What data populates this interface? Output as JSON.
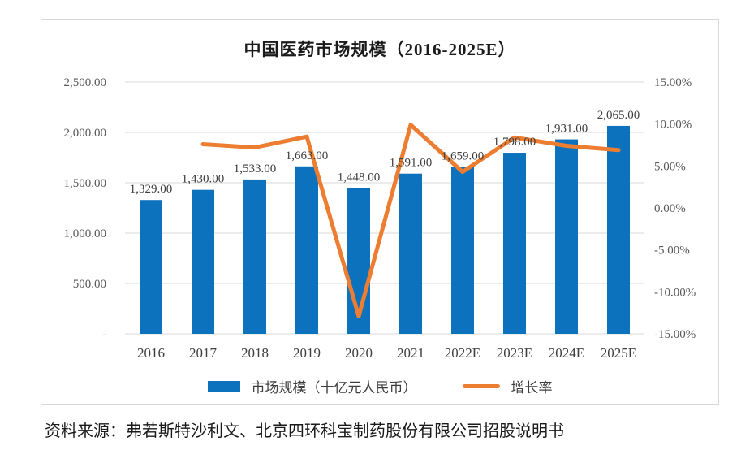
{
  "page": {
    "source_note": "资料来源：弗若斯特沙利文、北京四环科宝制药股份有限公司招股说明书"
  },
  "chart_data": {
    "type": "bar",
    "subtype": "bar-line-combo",
    "title": "中国医药市场规模（2016-2025E）",
    "categories": [
      "2016",
      "2017",
      "2018",
      "2019",
      "2020",
      "2021",
      "2022E",
      "2023E",
      "2024E",
      "2025E"
    ],
    "series": [
      {
        "name": "市场规模（十亿元人民币）",
        "type": "bar",
        "axis": "left",
        "values": [
          1329,
          1430,
          1533,
          1663,
          1448,
          1591,
          1659,
          1798,
          1931,
          2065
        ],
        "data_labels": [
          "1,329.00",
          "1,430.00",
          "1,533.00",
          "1,663.00",
          "1,448.00",
          "1,591.00",
          "1,659.00",
          "1,798.00",
          "1,931.00",
          "2,065.00"
        ],
        "color": "#0c72be"
      },
      {
        "name": "增长率",
        "type": "line",
        "axis": "right",
        "values_percent": [
          null,
          7.6,
          7.2,
          8.5,
          -12.9,
          9.9,
          4.3,
          8.4,
          7.4,
          6.9
        ],
        "color": "#ed7d31"
      }
    ],
    "left_axis": {
      "min": 0,
      "max": 2500,
      "step": 500,
      "tick_labels_top_to_bottom": [
        "2,500.00",
        "2,000.00",
        "1,500.00",
        "1,000.00",
        "500.00",
        "-"
      ]
    },
    "right_axis": {
      "min": -15,
      "max": 15,
      "step": 5,
      "tick_labels_top_to_bottom": [
        "15.00%",
        "10.00%",
        "5.00%",
        "0.00%",
        "-5.00%",
        "-10.00%",
        "-15.00%"
      ]
    },
    "grid": true,
    "gridline_color": "#d9d9d9",
    "legend_position": "bottom",
    "legend": {
      "bar_label": "市场规模（十亿元人民币）",
      "line_label": "增长率"
    }
  }
}
